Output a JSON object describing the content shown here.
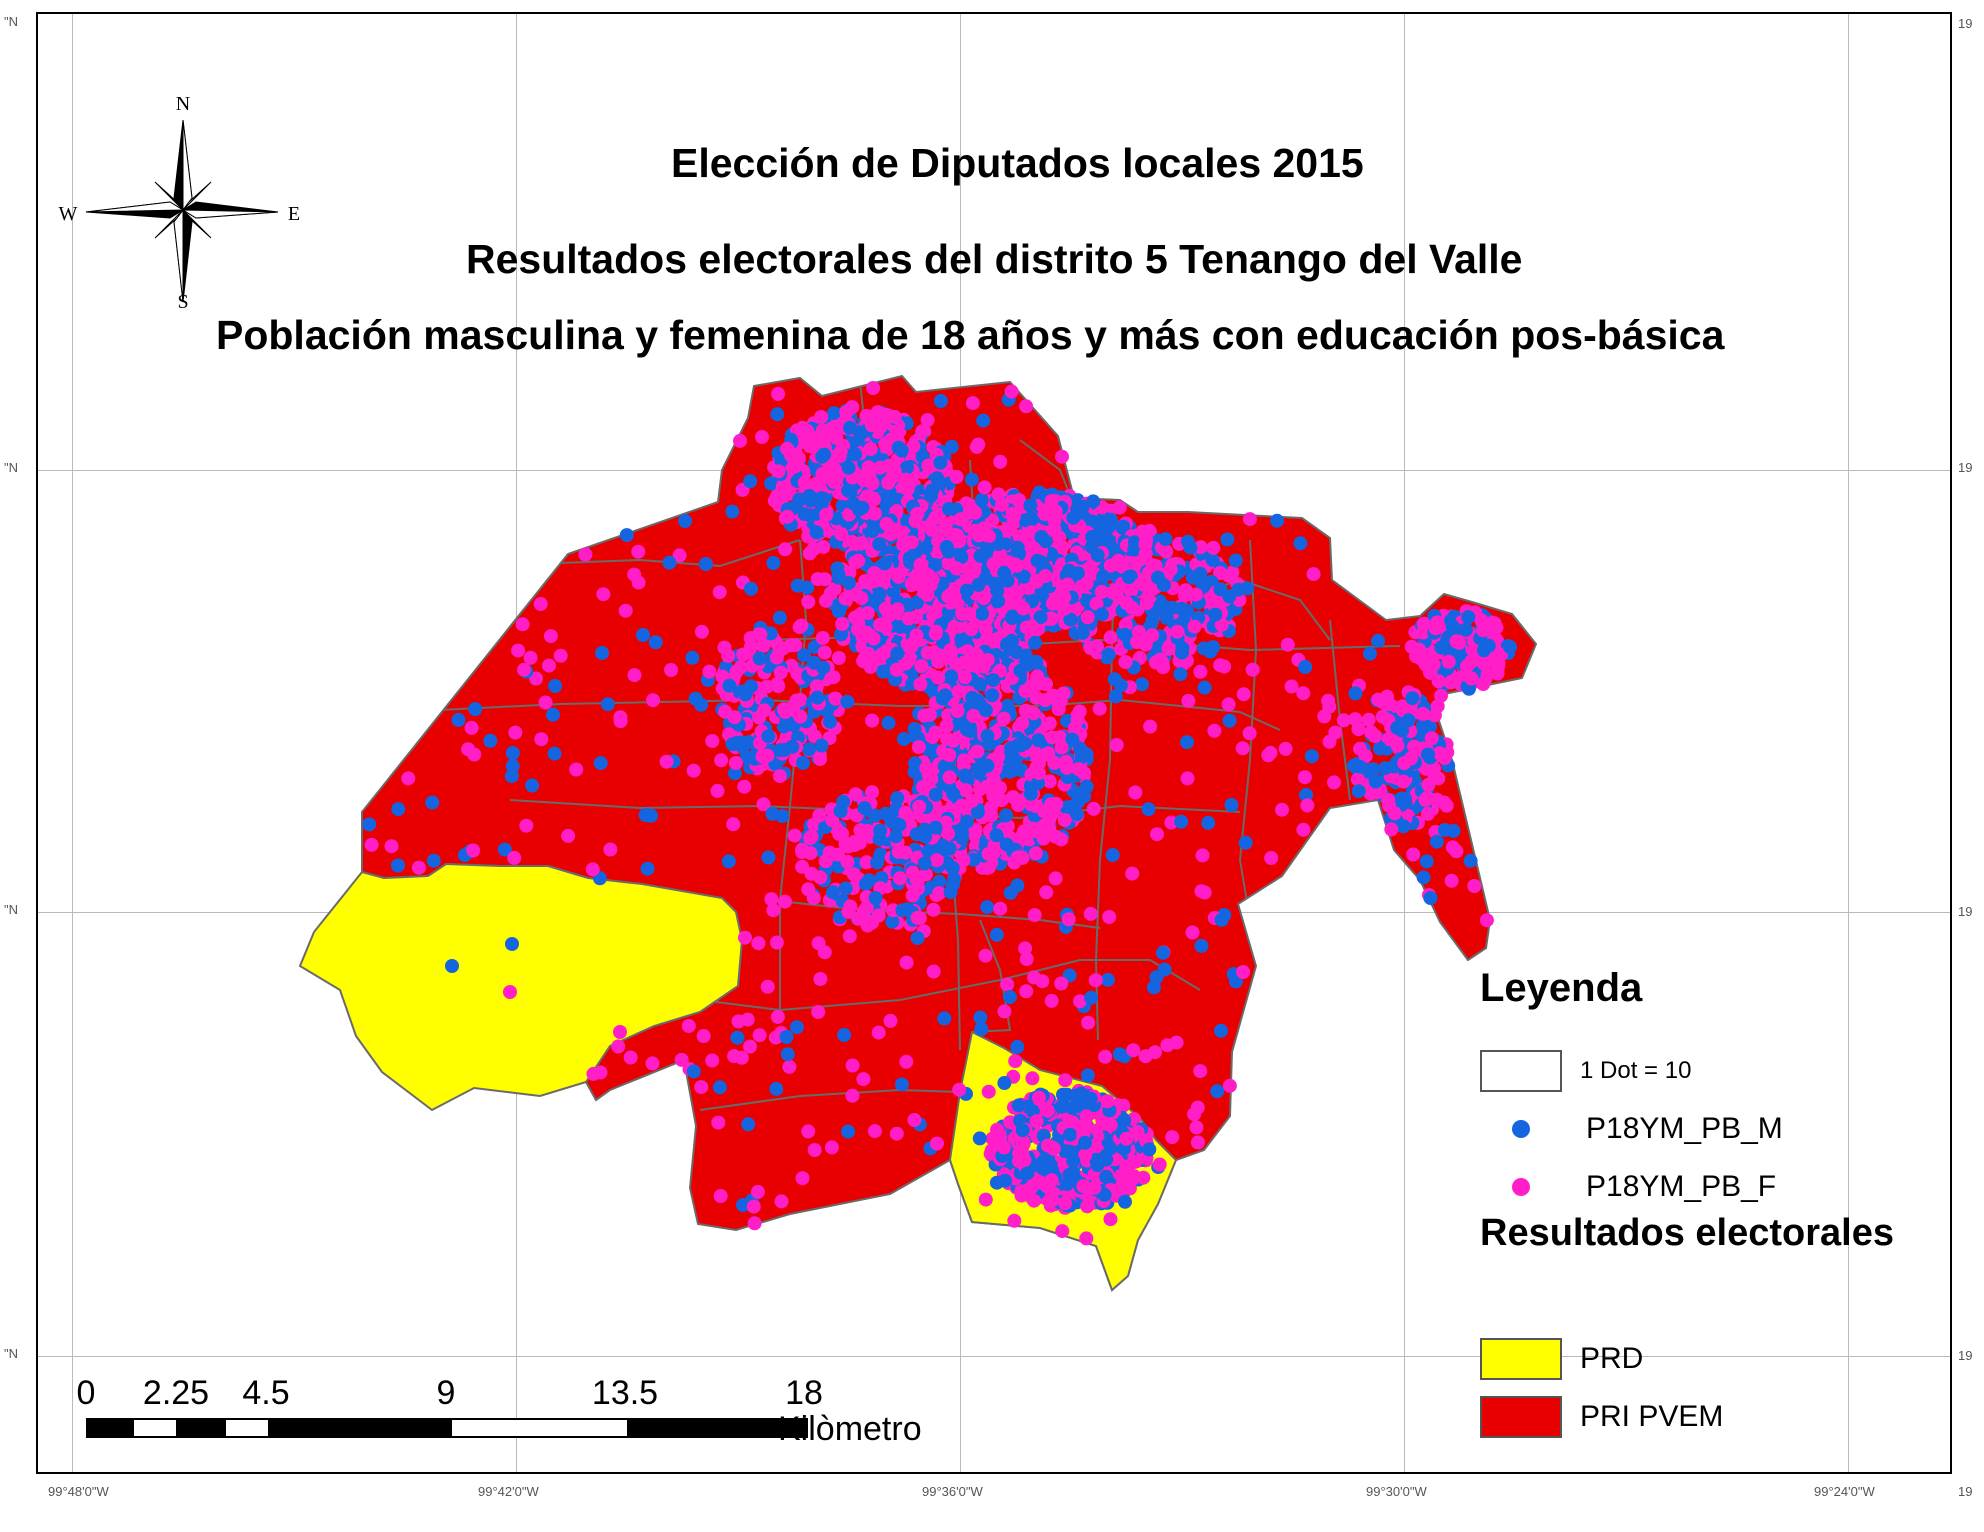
{
  "title": {
    "line1": "Elección de Diputados locales 2015",
    "line2": "Resultados electorales del distrito 5 Tenango del Valle",
    "line3": "Población masculina y femenina de 18 años y más con educación pos-básica"
  },
  "north_arrow": {
    "n": "N",
    "s": "S",
    "e": "E",
    "w": "W"
  },
  "legend": {
    "title": "Leyenda",
    "dot_value": "1 Dot = 10",
    "dot_items": [
      {
        "label": "P18YM_PB_M",
        "color": "#1565e0",
        "icon": "blue-dot-icon"
      },
      {
        "label": "P18YM_PB_F",
        "color": "#ff1ec8",
        "icon": "magenta-dot-icon"
      }
    ]
  },
  "results": {
    "title": "Resultados electorales",
    "parties": [
      {
        "label": "PRD",
        "color": "#ffff00"
      },
      {
        "label": "PRI PVEM",
        "color": "#e80000"
      }
    ]
  },
  "scale_bar": {
    "ticks": [
      "0",
      "2.25",
      "4.5",
      "9",
      "13.5",
      "18"
    ],
    "unit": "Kilòmetro"
  },
  "coordinates": {
    "longitude": [
      "99°48'0\"W",
      "99°42'0\"W",
      "99°36'0\"W",
      "99°30'0\"W",
      "99°24'0\"W"
    ],
    "latitude_left": [
      "\"N",
      "\"N",
      "\"N",
      "\"N"
    ],
    "latitude_right": [
      "19",
      "19",
      "19",
      "19",
      "19"
    ]
  },
  "colors": {
    "prd": "#ffff00",
    "pri_pvem": "#e80000",
    "men_dots": "#1565e0",
    "women_dots": "#ff1ec8",
    "boundary": "#6a6a6a"
  }
}
